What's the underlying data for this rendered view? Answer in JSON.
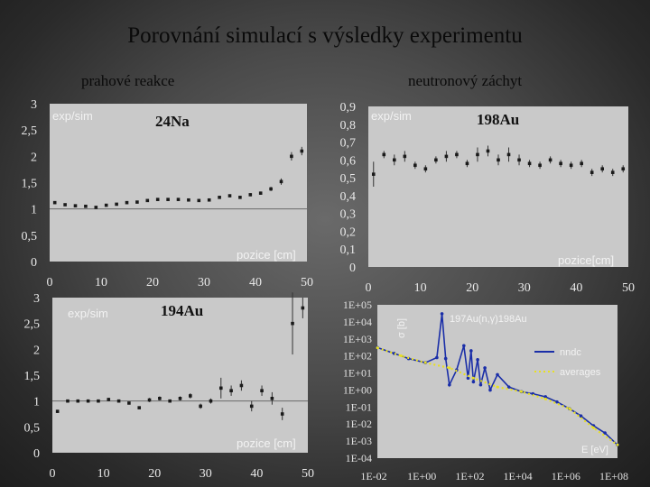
{
  "slide": {
    "title": "Porovnání simulací s výsledky experimentu",
    "left_heading": "prahové reakce",
    "right_heading": "neutronový záchyt"
  },
  "chart_data": [
    {
      "id": "na24",
      "type": "scatter",
      "title": "24Na",
      "ylabel": "exp/sim",
      "xlabel": "pozice [cm]",
      "xlim": [
        0,
        50
      ],
      "ylim": [
        0,
        3
      ],
      "xticks": [
        "0",
        "10",
        "20",
        "30",
        "40",
        "50"
      ],
      "yticks": [
        "0",
        "0,5",
        "1",
        "1,5",
        "2",
        "2,5",
        "3"
      ],
      "grid": false,
      "reference_line": 1,
      "x": [
        1,
        3,
        5,
        7,
        9,
        11,
        13,
        15,
        17,
        19,
        21,
        23,
        25,
        27,
        29,
        31,
        33,
        35,
        37,
        39,
        41,
        43,
        45,
        47,
        49
      ],
      "y": [
        1.12,
        1.08,
        1.06,
        1.05,
        1.03,
        1.07,
        1.09,
        1.12,
        1.13,
        1.16,
        1.18,
        1.18,
        1.18,
        1.17,
        1.16,
        1.17,
        1.22,
        1.25,
        1.22,
        1.27,
        1.3,
        1.38,
        1.52,
        2.0,
        2.1
      ],
      "err": [
        0.02,
        0.02,
        0.02,
        0.02,
        0.02,
        0.02,
        0.02,
        0.02,
        0.02,
        0.02,
        0.02,
        0.02,
        0.02,
        0.02,
        0.02,
        0.02,
        0.02,
        0.02,
        0.02,
        0.03,
        0.03,
        0.04,
        0.06,
        0.08,
        0.08
      ]
    },
    {
      "id": "au198",
      "type": "scatter",
      "title": "198Au",
      "ylabel": "exp/sim",
      "xlabel": "pozice[cm]",
      "xlim": [
        0,
        50
      ],
      "ylim": [
        0,
        0.9
      ],
      "xticks": [
        "0",
        "10",
        "20",
        "30",
        "40",
        "50"
      ],
      "yticks": [
        "0",
        "0,1",
        "0,2",
        "0,3",
        "0,4",
        "0,5",
        "0,6",
        "0,7",
        "0,8",
        "0,9"
      ],
      "grid": false,
      "x": [
        1,
        3,
        5,
        7,
        9,
        11,
        13,
        15,
        17,
        19,
        21,
        23,
        25,
        27,
        29,
        31,
        33,
        35,
        37,
        39,
        41,
        43,
        45,
        47,
        49
      ],
      "y": [
        0.52,
        0.63,
        0.6,
        0.62,
        0.57,
        0.55,
        0.6,
        0.62,
        0.63,
        0.58,
        0.63,
        0.65,
        0.6,
        0.63,
        0.6,
        0.58,
        0.57,
        0.6,
        0.58,
        0.57,
        0.58,
        0.53,
        0.55,
        0.53,
        0.55
      ],
      "err": [
        0.07,
        0.02,
        0.03,
        0.03,
        0.02,
        0.02,
        0.02,
        0.03,
        0.02,
        0.02,
        0.04,
        0.03,
        0.03,
        0.04,
        0.03,
        0.02,
        0.02,
        0.02,
        0.02,
        0.02,
        0.02,
        0.02,
        0.02,
        0.02,
        0.02
      ]
    },
    {
      "id": "au194",
      "type": "scatter",
      "title": "194Au",
      "ylabel": "exp/sim",
      "xlabel": "pozice [cm]",
      "xlim": [
        0,
        50
      ],
      "ylim": [
        0,
        3
      ],
      "xticks": [
        "0",
        "10",
        "20",
        "30",
        "40",
        "50"
      ],
      "yticks": [
        "0",
        "0,5",
        "1",
        "1,5",
        "2",
        "2,5",
        "3"
      ],
      "grid": false,
      "reference_line": 1,
      "x": [
        1,
        3,
        5,
        7,
        9,
        11,
        13,
        15,
        17,
        19,
        21,
        23,
        25,
        27,
        29,
        31,
        33,
        35,
        37,
        39,
        41,
        43,
        45,
        47,
        49
      ],
      "y": [
        0.8,
        1.0,
        1.0,
        1.0,
        1.0,
        1.03,
        1.0,
        0.96,
        0.87,
        1.02,
        1.05,
        1.0,
        1.05,
        1.1,
        0.9,
        1.0,
        1.25,
        1.2,
        1.3,
        0.9,
        1.2,
        1.05,
        0.75,
        2.5,
        2.8
      ],
      "err": [
        0.03,
        0.02,
        0.02,
        0.02,
        0.02,
        0.03,
        0.02,
        0.02,
        0.02,
        0.04,
        0.04,
        0.03,
        0.04,
        0.05,
        0.05,
        0.05,
        0.2,
        0.1,
        0.1,
        0.1,
        0.1,
        0.12,
        0.12,
        0.6,
        0.2
      ]
    },
    {
      "id": "xs",
      "type": "line",
      "title": "197Au(n,γ)198Au",
      "ylabel": "σ [b]",
      "xlabel": "E [eV]",
      "xscale": "log",
      "yscale": "log",
      "xlim": [
        0.01,
        100000000
      ],
      "ylim": [
        0.0001,
        100000
      ],
      "xticks": [
        "1E-02",
        "1E+00",
        "1E+02",
        "1E+04",
        "1E+06",
        "1E+08"
      ],
      "yticks": [
        "1E+05",
        "1E+04",
        "1E+03",
        "1E+02",
        "1E+01",
        "1E+00",
        "1E-01",
        "1E-02",
        "1E-03",
        "1E-04"
      ],
      "legend": "right",
      "series": [
        {
          "name": "nndc",
          "color": "#1a2ea8",
          "x": [
            0.01,
            0.05,
            0.2,
            1,
            3,
            4.9,
            7,
            10,
            20,
            40,
            60,
            80,
            100,
            150,
            200,
            300,
            500,
            1000,
            3000,
            10000,
            30000,
            100000,
            300000,
            1000000,
            3000000,
            10000000,
            30000000,
            100000000
          ],
          "y": [
            310,
            140,
            70,
            40,
            80,
            30000,
            70,
            2,
            15,
            400,
            5,
            200,
            3,
            60,
            2,
            20,
            1,
            8,
            1.5,
            0.8,
            0.6,
            0.4,
            0.2,
            0.08,
            0.03,
            0.008,
            0.003,
            0.0006
          ]
        },
        {
          "name": "averages",
          "color": "#e8e020",
          "x": [
            0.01,
            0.1,
            1,
            10,
            100,
            1000,
            10000,
            100000,
            1000000,
            10000000,
            100000000
          ],
          "y": [
            300,
            100,
            40,
            20,
            5,
            1.5,
            0.8,
            0.3,
            0.08,
            0.006,
            0.0006
          ]
        }
      ]
    }
  ]
}
